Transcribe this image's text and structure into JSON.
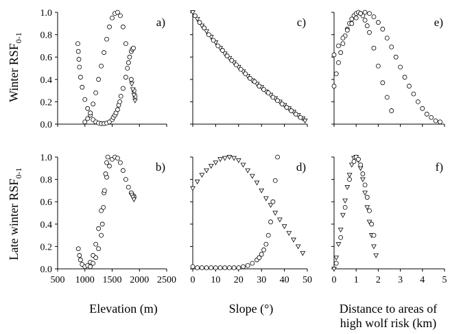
{
  "chart_data": [
    {
      "id": "a",
      "type": "scatter",
      "label": "a)",
      "row": "winter",
      "col": "elevation",
      "xlim": [
        500,
        2500
      ],
      "ylim": [
        0,
        1
      ],
      "ylabel": "Winter RSF",
      "ylabel_sub": "0-1",
      "series": [
        {
          "marker": "circle",
          "x": [
            870,
            880,
            890,
            900,
            920,
            950,
            1000,
            1050,
            1100,
            1150,
            1200,
            1250,
            1300,
            1350,
            1400,
            1450,
            1500,
            1520,
            1550,
            1570,
            1600,
            1620,
            1640,
            1660,
            1700,
            1750,
            1780,
            1800,
            1820,
            1850,
            1870,
            1890
          ],
          "y": [
            0.72,
            0.65,
            0.58,
            0.51,
            0.42,
            0.33,
            0.22,
            0.14,
            0.08,
            0.04,
            0.02,
            0.01,
            0.005,
            0.005,
            0.01,
            0.02,
            0.04,
            0.06,
            0.08,
            0.1,
            0.13,
            0.17,
            0.2,
            0.25,
            0.32,
            0.42,
            0.5,
            0.55,
            0.6,
            0.65,
            0.67,
            0.68
          ]
        },
        {
          "marker": "circle",
          "x": [
            1000,
            1050,
            1100,
            1150,
            1200,
            1250,
            1300,
            1350,
            1400,
            1450,
            1500,
            1550,
            1600,
            1650,
            1700,
            1750,
            1800,
            1850,
            1900,
            1920
          ],
          "y": [
            0.02,
            0.05,
            0.1,
            0.18,
            0.28,
            0.4,
            0.52,
            0.64,
            0.76,
            0.87,
            0.95,
            0.99,
            1.0,
            0.97,
            0.87,
            0.72,
            0.55,
            0.4,
            0.3,
            0.25
          ]
        },
        {
          "marker": "triangle",
          "x": [
            1860,
            1880,
            1900,
            1920
          ],
          "y": [
            0.36,
            0.31,
            0.26,
            0.21
          ]
        }
      ]
    },
    {
      "id": "b",
      "type": "scatter",
      "label": "b)",
      "row": "late_winter",
      "col": "elevation",
      "xlim": [
        500,
        2500
      ],
      "ylim": [
        0,
        1
      ],
      "ylabel": "Late winter RSF",
      "ylabel_sub": "0-1",
      "x_ticks": [
        "500",
        "1000",
        "1500",
        "2000",
        "2500"
      ],
      "xlabel": "Elevation (m)",
      "series": [
        {
          "marker": "circle",
          "x": [
            880,
            900,
            920,
            950,
            1000,
            1050,
            1100,
            1150,
            1200,
            1250,
            1300,
            1350,
            1400,
            1450,
            1500,
            1550,
            1600,
            1650,
            1700,
            1750,
            1800,
            1850,
            1900
          ],
          "y": [
            0.18,
            0.12,
            0.08,
            0.04,
            0.02,
            0.03,
            0.06,
            0.12,
            0.22,
            0.36,
            0.52,
            0.68,
            0.82,
            0.92,
            0.98,
            1.0,
            0.99,
            0.95,
            0.88,
            0.8,
            0.73,
            0.68,
            0.65
          ]
        },
        {
          "marker": "circle",
          "x": [
            1100,
            1150,
            1200,
            1250,
            1300,
            1320,
            1340,
            1360,
            1380,
            1400,
            1420
          ],
          "y": [
            0.02,
            0.05,
            0.1,
            0.18,
            0.3,
            0.4,
            0.55,
            0.7,
            0.85,
            0.95,
            1.0
          ]
        },
        {
          "marker": "triangle",
          "x": [
            1860,
            1880,
            1900
          ],
          "y": [
            0.66,
            0.64,
            0.62
          ]
        }
      ]
    },
    {
      "id": "c",
      "type": "scatter",
      "label": "c)",
      "row": "winter",
      "col": "slope",
      "xlim": [
        0,
        50
      ],
      "ylim": [
        0,
        1
      ],
      "series": [
        {
          "marker": "triangle",
          "x": [
            0,
            2,
            4,
            6,
            8,
            10,
            12,
            14,
            16,
            18,
            20,
            22,
            24,
            26,
            28,
            30,
            32,
            34,
            36,
            38,
            40,
            42,
            44,
            46,
            48,
            49
          ],
          "y": [
            1.0,
            0.94,
            0.88,
            0.83,
            0.78,
            0.73,
            0.68,
            0.63,
            0.59,
            0.55,
            0.51,
            0.47,
            0.43,
            0.39,
            0.36,
            0.33,
            0.29,
            0.26,
            0.23,
            0.2,
            0.17,
            0.14,
            0.11,
            0.08,
            0.05,
            0.03
          ]
        },
        {
          "marker": "circle",
          "x": [
            1,
            3,
            5,
            7,
            9,
            11,
            13,
            15,
            17,
            19,
            21,
            23,
            25,
            27,
            29,
            31,
            33,
            35,
            37,
            39,
            41,
            43,
            45,
            47
          ],
          "y": [
            0.97,
            0.91,
            0.86,
            0.8,
            0.75,
            0.7,
            0.66,
            0.61,
            0.57,
            0.53,
            0.49,
            0.45,
            0.41,
            0.38,
            0.34,
            0.31,
            0.28,
            0.24,
            0.21,
            0.18,
            0.15,
            0.12,
            0.09,
            0.06
          ]
        }
      ]
    },
    {
      "id": "d",
      "type": "scatter",
      "label": "d)",
      "row": "late_winter",
      "col": "slope",
      "xlim": [
        0,
        50
      ],
      "ylim": [
        0,
        1
      ],
      "x_ticks": [
        "0",
        "10",
        "20",
        "30",
        "40",
        "50"
      ],
      "xlabel": "Slope (°)",
      "series": [
        {
          "marker": "triangle",
          "x": [
            0,
            2,
            4,
            6,
            8,
            10,
            12,
            14,
            16,
            18,
            20,
            22,
            24,
            26,
            28,
            30,
            32,
            34,
            36,
            38,
            40,
            42,
            44,
            46,
            48
          ],
          "y": [
            0.72,
            0.78,
            0.84,
            0.88,
            0.92,
            0.95,
            0.98,
            0.99,
            1.0,
            0.99,
            0.97,
            0.93,
            0.88,
            0.83,
            0.77,
            0.7,
            0.63,
            0.57,
            0.5,
            0.44,
            0.38,
            0.32,
            0.26,
            0.2,
            0.14
          ]
        },
        {
          "marker": "circle",
          "x": [
            0,
            2,
            4,
            6,
            8,
            10,
            12,
            14,
            16,
            18,
            20,
            22,
            24,
            26,
            28,
            29,
            30,
            31,
            32,
            33,
            34,
            35,
            36,
            37
          ],
          "y": [
            0.02,
            0.01,
            0.01,
            0.01,
            0.01,
            0.01,
            0.01,
            0.01,
            0.01,
            0.01,
            0.01,
            0.02,
            0.03,
            0.05,
            0.08,
            0.1,
            0.13,
            0.17,
            0.22,
            0.3,
            0.42,
            0.6,
            0.79,
            1.0
          ]
        }
      ]
    },
    {
      "id": "e",
      "type": "scatter",
      "label": "e)",
      "row": "winter",
      "col": "distance",
      "xlim": [
        0,
        5
      ],
      "ylim": [
        0,
        1
      ],
      "series": [
        {
          "marker": "circle",
          "x": [
            0,
            0.1,
            0.2,
            0.3,
            0.4,
            0.5,
            0.6,
            0.7,
            0.8,
            0.9,
            1.0,
            1.1,
            1.2,
            1.3,
            1.4,
            1.5,
            1.6,
            1.8,
            2.0,
            2.2,
            2.4,
            2.6
          ],
          "y": [
            0.34,
            0.45,
            0.55,
            0.64,
            0.72,
            0.79,
            0.85,
            0.9,
            0.94,
            0.97,
            0.99,
            1.0,
            0.99,
            0.97,
            0.93,
            0.88,
            0.82,
            0.68,
            0.52,
            0.37,
            0.24,
            0.12
          ]
        },
        {
          "marker": "circle",
          "x": [
            0,
            0.2,
            0.4,
            0.6,
            0.8,
            1.0,
            1.2,
            1.4,
            1.6,
            1.8,
            2.0,
            2.2,
            2.4,
            2.6,
            2.8,
            3.0,
            3.2,
            3.4,
            3.6,
            3.8,
            4.0,
            4.2,
            4.4,
            4.6,
            4.8
          ],
          "y": [
            0.62,
            0.7,
            0.77,
            0.84,
            0.9,
            0.95,
            0.99,
            1.0,
            0.99,
            0.96,
            0.91,
            0.85,
            0.77,
            0.69,
            0.6,
            0.51,
            0.42,
            0.34,
            0.27,
            0.2,
            0.14,
            0.09,
            0.06,
            0.03,
            0.02
          ]
        }
      ]
    },
    {
      "id": "f",
      "type": "scatter",
      "label": "f)",
      "row": "late_winter",
      "col": "distance",
      "xlim": [
        0,
        5
      ],
      "ylim": [
        0,
        1
      ],
      "x_ticks": [
        "0",
        "1",
        "2",
        "3",
        "4",
        "5"
      ],
      "xlabel": "Distance to areas of",
      "xlabel2": "high wolf risk (km)",
      "series": [
        {
          "marker": "triangle",
          "x": [
            0,
            0.1,
            0.2,
            0.3,
            0.4,
            0.5,
            0.6,
            0.7,
            0.8,
            0.9,
            1.0,
            1.1,
            1.2,
            1.3,
            1.4,
            1.5,
            1.6,
            1.7,
            1.8,
            1.9
          ],
          "y": [
            0.0,
            0.1,
            0.22,
            0.35,
            0.48,
            0.61,
            0.73,
            0.84,
            0.93,
            0.99,
            1.0,
            0.97,
            0.9,
            0.8,
            0.68,
            0.55,
            0.42,
            0.3,
            0.2,
            0.12
          ]
        },
        {
          "marker": "circle",
          "x": [
            0.1,
            0.3,
            0.5,
            0.7,
            0.9,
            1.0,
            1.1,
            1.2,
            1.3,
            1.4,
            1.5,
            1.6,
            1.7,
            1.8
          ],
          "y": [
            0.05,
            0.28,
            0.55,
            0.8,
            0.96,
            1.0,
            0.98,
            0.93,
            0.85,
            0.75,
            0.64,
            0.52,
            0.4,
            0.3
          ]
        }
      ]
    }
  ],
  "y_ticks": [
    "0.0",
    "0.2",
    "0.4",
    "0.6",
    "0.8",
    "1.0"
  ]
}
